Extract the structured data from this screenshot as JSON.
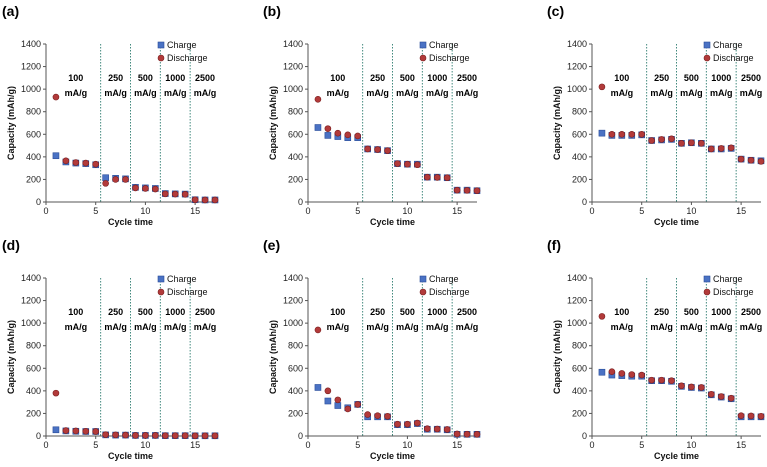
{
  "figure": {
    "panel_labels": [
      "(a)",
      "(b)",
      "(c)",
      "(d)",
      "(e)",
      "(f)"
    ],
    "legend": {
      "charge_label": "Charge",
      "discharge_label": "Discharge"
    },
    "rate_labels": [
      {
        "value": "100",
        "unit": "mA/g"
      },
      {
        "value": "250",
        "unit": "mA/g"
      },
      {
        "value": "500",
        "unit": "mA/g"
      },
      {
        "value": "1000",
        "unit": "mA/g"
      },
      {
        "value": "2500",
        "unit": "mA/g"
      }
    ],
    "colors": {
      "charge": "#4a72c4",
      "discharge": "#b23a3a",
      "divider": "#2f7d71",
      "axis": "#555555"
    }
  },
  "chart_data": [
    {
      "type": "scatter",
      "panel": "(a)",
      "xlabel": "Cycle time",
      "ylabel": "Capacity (mAh/g)",
      "xlim": [
        0,
        17
      ],
      "ylim": [
        0,
        1400
      ],
      "xticks": [
        0,
        5,
        10,
        15
      ],
      "yticks": [
        0,
        200,
        400,
        600,
        800,
        1000,
        1200,
        1400
      ],
      "rate_boundaries": [
        5.5,
        8.5,
        11.5,
        14.5
      ],
      "x": [
        1,
        2,
        3,
        4,
        5,
        6,
        7,
        8,
        9,
        10,
        11,
        12,
        13,
        14,
        15,
        16,
        17
      ],
      "series": [
        {
          "name": "Charge",
          "values": [
            410,
            355,
            345,
            340,
            330,
            215,
            210,
            205,
            130,
            125,
            120,
            75,
            72,
            70,
            20,
            18,
            18
          ]
        },
        {
          "name": "Discharge",
          "values": [
            930,
            365,
            350,
            345,
            335,
            165,
            200,
            200,
            125,
            120,
            115,
            72,
            70,
            68,
            20,
            18,
            18
          ]
        }
      ]
    },
    {
      "type": "scatter",
      "panel": "(b)",
      "xlabel": "Cycle time",
      "ylabel": "Capacity (mAh/g)",
      "xlim": [
        0,
        17
      ],
      "ylim": [
        0,
        1400
      ],
      "xticks": [
        0,
        5,
        10,
        15
      ],
      "yticks": [
        0,
        200,
        400,
        600,
        800,
        1000,
        1200,
        1400
      ],
      "rate_boundaries": [
        5.5,
        8.5,
        11.5,
        14.5
      ],
      "x": [
        1,
        2,
        3,
        4,
        5,
        6,
        7,
        8,
        9,
        10,
        11,
        12,
        13,
        14,
        15,
        16,
        17
      ],
      "series": [
        {
          "name": "Charge",
          "values": [
            660,
            590,
            580,
            570,
            570,
            470,
            465,
            455,
            340,
            335,
            335,
            220,
            220,
            215,
            105,
            105,
            100
          ]
        },
        {
          "name": "Discharge",
          "values": [
            910,
            650,
            610,
            595,
            585,
            470,
            465,
            455,
            340,
            335,
            330,
            220,
            218,
            215,
            105,
            103,
            100
          ]
        }
      ]
    },
    {
      "type": "scatter",
      "panel": "(c)",
      "xlabel": "Cycle time",
      "ylabel": "Capacity (mAh/g)",
      "xlim": [
        0,
        17
      ],
      "ylim": [
        0,
        1400
      ],
      "xticks": [
        0,
        5,
        10,
        15
      ],
      "yticks": [
        0,
        200,
        400,
        600,
        800,
        1000,
        1200,
        1400
      ],
      "rate_boundaries": [
        5.5,
        8.5,
        11.5,
        14.5
      ],
      "x": [
        1,
        2,
        3,
        4,
        5,
        6,
        7,
        8,
        9,
        10,
        11,
        12,
        13,
        14,
        15,
        16,
        17
      ],
      "series": [
        {
          "name": "Charge",
          "values": [
            610,
            590,
            590,
            590,
            595,
            545,
            550,
            555,
            520,
            525,
            520,
            470,
            470,
            475,
            380,
            370,
            365
          ]
        },
        {
          "name": "Discharge",
          "values": [
            1020,
            600,
            600,
            600,
            600,
            545,
            555,
            560,
            520,
            525,
            520,
            470,
            475,
            480,
            380,
            370,
            360
          ]
        }
      ]
    },
    {
      "type": "scatter",
      "panel": "(d)",
      "xlabel": "Cycle time",
      "ylabel": "Capacity (mAh/g)",
      "xlim": [
        0,
        17
      ],
      "ylim": [
        0,
        1400
      ],
      "xticks": [
        0,
        5,
        10,
        15
      ],
      "yticks": [
        0,
        200,
        400,
        600,
        800,
        1000,
        1200,
        1400
      ],
      "rate_boundaries": [
        5.5,
        8.5,
        11.5,
        14.5
      ],
      "x": [
        1,
        2,
        3,
        4,
        5,
        6,
        7,
        8,
        9,
        10,
        11,
        12,
        13,
        14,
        15,
        16,
        17
      ],
      "series": [
        {
          "name": "Charge",
          "values": [
            55,
            45,
            42,
            40,
            40,
            10,
            8,
            8,
            5,
            5,
            5,
            3,
            3,
            3,
            2,
            2,
            2
          ]
        },
        {
          "name": "Discharge",
          "values": [
            380,
            48,
            45,
            42,
            40,
            12,
            10,
            8,
            5,
            5,
            5,
            3,
            3,
            3,
            2,
            2,
            2
          ]
        }
      ]
    },
    {
      "type": "scatter",
      "panel": "(e)",
      "xlabel": "Cycle time",
      "ylabel": "Capacity (mAh/g)",
      "xlim": [
        0,
        17
      ],
      "ylim": [
        0,
        1400
      ],
      "xticks": [
        0,
        5,
        10,
        15
      ],
      "yticks": [
        0,
        200,
        400,
        600,
        800,
        1000,
        1200,
        1400
      ],
      "rate_boundaries": [
        5.5,
        8.5,
        11.5,
        14.5
      ],
      "x": [
        1,
        2,
        3,
        4,
        5,
        6,
        7,
        8,
        9,
        10,
        11,
        12,
        13,
        14,
        15,
        16,
        17
      ],
      "series": [
        {
          "name": "Charge",
          "values": [
            430,
            310,
            270,
            250,
            280,
            170,
            170,
            170,
            100,
            100,
            110,
            60,
            60,
            55,
            15,
            15,
            15
          ]
        },
        {
          "name": "Discharge",
          "values": [
            940,
            400,
            320,
            240,
            280,
            190,
            180,
            175,
            105,
            105,
            115,
            65,
            62,
            58,
            18,
            16,
            15
          ]
        }
      ]
    },
    {
      "type": "scatter",
      "panel": "(f)",
      "xlabel": "Cycle time",
      "ylabel": "Capacity (mAh/g)",
      "xlim": [
        0,
        17
      ],
      "ylim": [
        0,
        1400
      ],
      "xticks": [
        0,
        5,
        10,
        15
      ],
      "yticks": [
        0,
        200,
        400,
        600,
        800,
        1000,
        1200,
        1400
      ],
      "rate_boundaries": [
        5.5,
        8.5,
        11.5,
        14.5
      ],
      "x": [
        1,
        2,
        3,
        4,
        5,
        6,
        7,
        8,
        9,
        10,
        11,
        12,
        13,
        14,
        15,
        16,
        17
      ],
      "series": [
        {
          "name": "Charge",
          "values": [
            565,
            540,
            535,
            530,
            530,
            490,
            490,
            485,
            440,
            430,
            425,
            365,
            345,
            330,
            170,
            170,
            170
          ]
        },
        {
          "name": "Discharge",
          "values": [
            1060,
            570,
            555,
            545,
            540,
            495,
            495,
            490,
            445,
            435,
            430,
            370,
            350,
            335,
            180,
            178,
            175
          ]
        }
      ]
    }
  ]
}
